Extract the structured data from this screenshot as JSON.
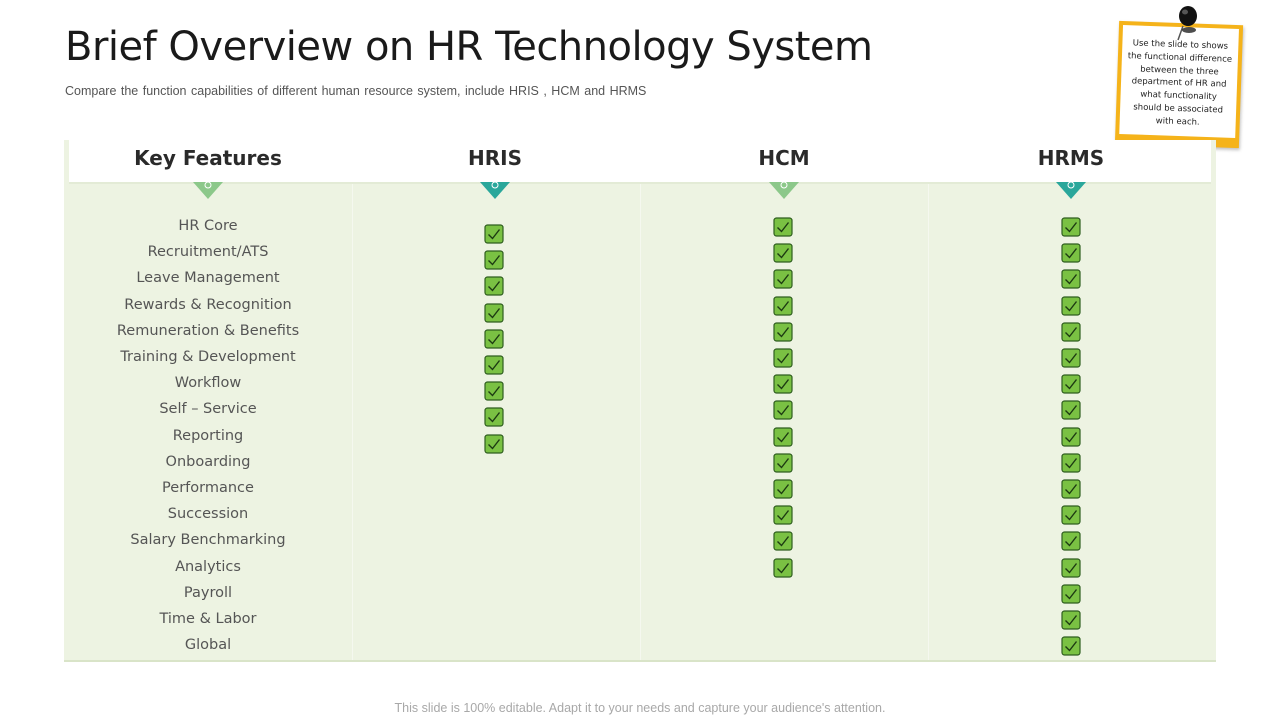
{
  "slide": {
    "title": "Brief Overview on HR Technology System",
    "subtitle": "Compare the function capabilities of different  human resource system, include HRIS  , HCM and HRMS",
    "note": "Use the slide to shows the functional difference between the three department of HR and what functionality should be associated with each.",
    "footer": "This slide is 100% editable. Adapt it to your needs and capture your audience's attention."
  },
  "table": {
    "headers": [
      "Key Features",
      "HRIS",
      "HCM",
      "HRMS"
    ],
    "features": [
      "HR Core",
      "Recruitment/ATS",
      "Leave Management",
      "Rewards & Recognition",
      "Remuneration & Benefits",
      "Training & Development",
      "Workflow",
      "Self – Service",
      "Reporting",
      "Onboarding",
      "Performance",
      "Succession",
      "Salary Benchmarking",
      "Analytics",
      "Payroll",
      "Time & Labor",
      "Global"
    ],
    "checks": {
      "HRIS": 9,
      "HCM": 14,
      "HRMS": 17
    }
  },
  "colors": {
    "accent_green": "#7ac143",
    "teal": "#2aa79b",
    "sticky_yellow": "#f5b31a",
    "table_bg": "#edf3e2"
  },
  "icons": {
    "check": "checkmark-box-icon",
    "pin": "push-pin-icon",
    "arrow": "down-triangle-marker-icon"
  }
}
